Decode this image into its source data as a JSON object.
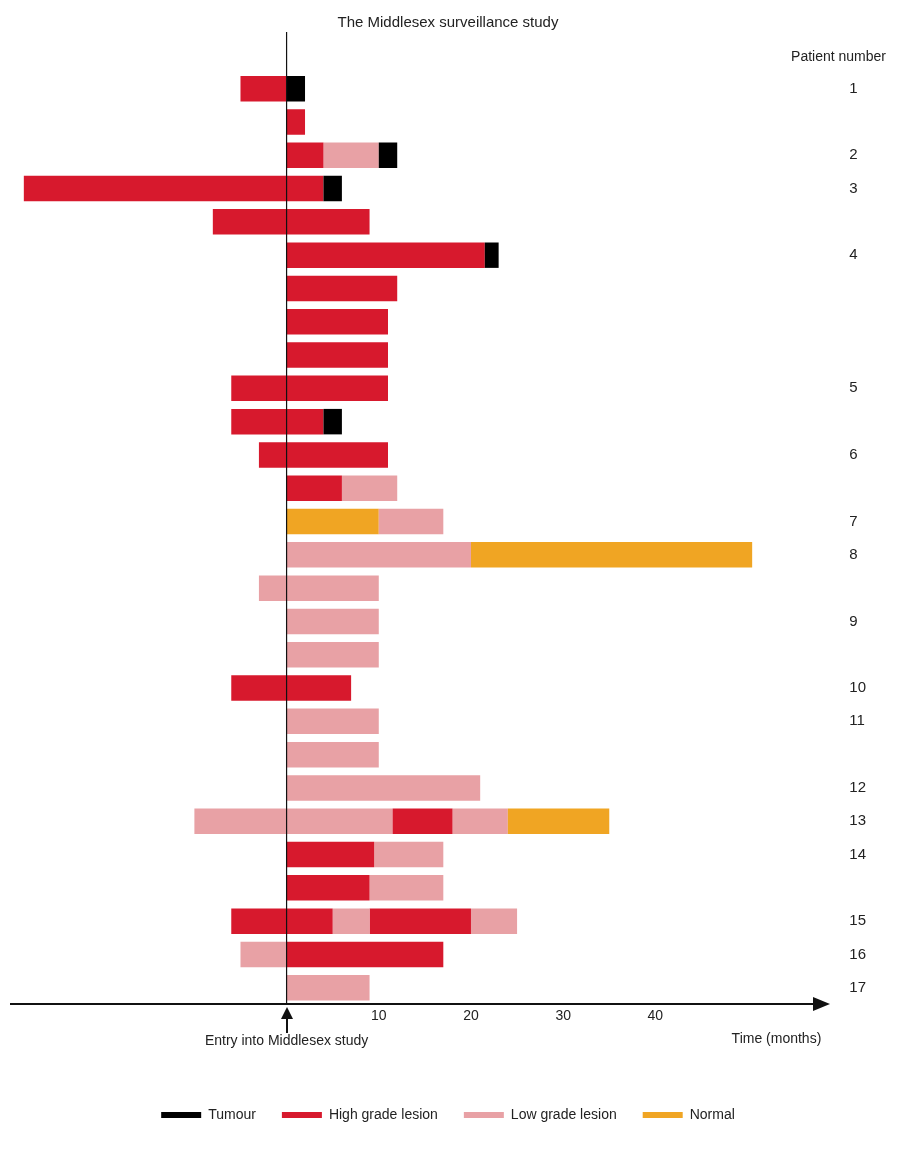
{
  "chart_data": {
    "type": "bar",
    "orientation": "horizontal",
    "title": "The Middlesex surveillance study",
    "ylabel": "Patient number",
    "xlabel": "Time (months)",
    "categories": [
      "1",
      null,
      "2",
      "3",
      null,
      "4",
      null,
      null,
      null,
      "5",
      null,
      "6",
      null,
      "7",
      "8",
      null,
      "9",
      null,
      "10",
      "11",
      null,
      "12",
      "13",
      "14",
      null,
      "15",
      "16",
      "17"
    ],
    "xlim": [
      -30,
      58
    ],
    "xticks": [
      10,
      20,
      30,
      40
    ],
    "series": [
      {
        "name": "Tumour",
        "color": "#000000",
        "values": [
          2,
          null,
          2,
          2,
          null,
          1.5,
          null,
          null,
          null,
          null,
          2,
          null,
          null,
          null,
          null,
          null,
          null,
          null,
          null,
          null,
          null,
          null,
          null,
          null,
          null,
          null,
          null,
          null
        ],
        "base": [
          0,
          null,
          10,
          4,
          null,
          21.5,
          null,
          null,
          null,
          null,
          4,
          null,
          null,
          null,
          null,
          null,
          null,
          null,
          null,
          null,
          null,
          null,
          null,
          null,
          null,
          null,
          null,
          null
        ]
      },
      {
        "name": "High grade lesion",
        "color": "#d7192d",
        "values": [
          5,
          2,
          4,
          32.5,
          17,
          21.5,
          12,
          11,
          11,
          17,
          10,
          14,
          6,
          null,
          null,
          null,
          null,
          null,
          13,
          null,
          null,
          null,
          6.5,
          9.5,
          9,
          11,
          17,
          null
        ],
        "base": [
          -5,
          0,
          0,
          -28.5,
          -8,
          0,
          0,
          0,
          0,
          -6,
          -6,
          -3,
          0,
          null,
          null,
          null,
          null,
          null,
          -6,
          null,
          null,
          null,
          11.5,
          0,
          0,
          -6,
          0,
          null
        ]
      },
      {
        "name": "Low grade lesion",
        "color": "#e8a1a5",
        "values": [
          null,
          null,
          6,
          null,
          null,
          null,
          null,
          null,
          null,
          null,
          null,
          null,
          6,
          7,
          20,
          13,
          10,
          10,
          null,
          10,
          10,
          21,
          21.5,
          7.5,
          8,
          4,
          5,
          9
        ],
        "base": [
          null,
          null,
          4,
          null,
          null,
          null,
          null,
          null,
          null,
          null,
          null,
          null,
          6,
          10,
          0,
          -3,
          0,
          0,
          null,
          0,
          0,
          0,
          -10,
          9.5,
          9,
          5,
          -5,
          0
        ]
      },
      {
        "name": "Normal",
        "color": "#f0a523",
        "values": [
          null,
          null,
          null,
          null,
          null,
          null,
          null,
          null,
          null,
          null,
          null,
          null,
          null,
          10,
          30.5,
          null,
          null,
          null,
          null,
          null,
          null,
          null,
          11,
          null,
          null,
          null,
          null,
          null
        ],
        "base": [
          null,
          null,
          null,
          null,
          null,
          null,
          null,
          null,
          null,
          null,
          null,
          null,
          null,
          0,
          20,
          null,
          null,
          null,
          null,
          null,
          null,
          null,
          24,
          null,
          null,
          null,
          null,
          null
        ]
      },
      {
        "color": "#d7192d",
        "values": [
          null,
          null,
          null,
          null,
          null,
          null,
          null,
          null,
          null,
          null,
          null,
          null,
          null,
          null,
          null,
          null,
          null,
          null,
          null,
          null,
          null,
          null,
          null,
          null,
          null,
          11,
          null,
          null
        ],
        "base": [
          null,
          null,
          null,
          null,
          null,
          null,
          null,
          null,
          null,
          null,
          null,
          null,
          null,
          null,
          null,
          null,
          null,
          null,
          null,
          null,
          null,
          null,
          null,
          null,
          null,
          9,
          null,
          null
        ]
      },
      {
        "color": "#e8a1a5",
        "values": [
          null,
          null,
          null,
          null,
          null,
          null,
          null,
          null,
          null,
          null,
          null,
          null,
          null,
          null,
          null,
          null,
          null,
          null,
          null,
          null,
          null,
          null,
          6,
          null,
          null,
          5,
          null,
          null
        ],
        "base": [
          null,
          null,
          null,
          null,
          null,
          null,
          null,
          null,
          null,
          null,
          null,
          null,
          null,
          null,
          null,
          null,
          null,
          null,
          null,
          null,
          null,
          null,
          18,
          null,
          null,
          20,
          null,
          null
        ]
      }
    ],
    "ref_lines": [
      {
        "axis": "x",
        "value": 0,
        "label": "Entry into Middlesex study"
      }
    ],
    "legend": "bottom"
  }
}
